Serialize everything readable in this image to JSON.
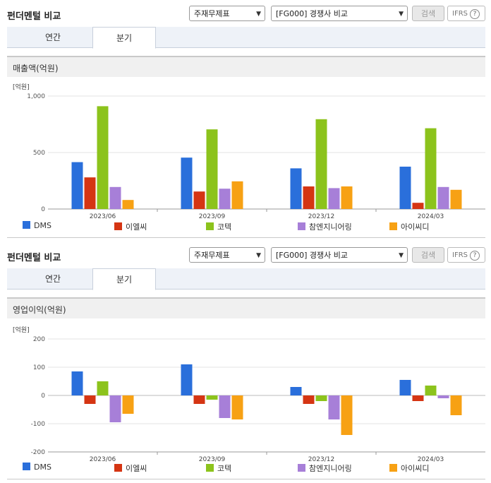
{
  "panels": [
    {
      "title": "펀더멘털 비교",
      "select1": "주재무제표",
      "select2": "[FG000] 경쟁사 비교",
      "search_button": "검색",
      "ifrs_label": "IFRS",
      "ifrs_help": "?",
      "tabs": [
        {
          "label": "연간"
        },
        {
          "label": "분기"
        }
      ],
      "active_tab": "분기",
      "chart_label": "매출액(억원)"
    },
    {
      "title": "펀더멘털 비교",
      "select1": "주재무제표",
      "select2": "[FG000] 경쟁사 비교",
      "search_button": "검색",
      "ifrs_label": "IFRS",
      "ifrs_help": "?",
      "tabs": [
        {
          "label": "연간"
        },
        {
          "label": "분기"
        }
      ],
      "active_tab": "분기",
      "chart_label": "영업이익(억원)"
    }
  ],
  "chart_data": [
    {
      "type": "bar",
      "unit_label": "[억원]",
      "categories": [
        "2023/06",
        "2023/09",
        "2023/12",
        "2024/03"
      ],
      "ylim": [
        0,
        1000
      ],
      "yticks": [
        0,
        500,
        1000
      ],
      "ytick_labels": [
        "0",
        "500",
        "1,000"
      ],
      "grid": true,
      "legend_position": "bottom",
      "series": [
        {
          "name": "DMS",
          "color": "#2a6fdb",
          "values": [
            415,
            455,
            360,
            375
          ]
        },
        {
          "name": "이엘씨",
          "color": "#d53513",
          "values": [
            280,
            155,
            200,
            55
          ]
        },
        {
          "name": "코텍",
          "color": "#8cc31c",
          "values": [
            910,
            705,
            795,
            715
          ]
        },
        {
          "name": "참엔지니어링",
          "color": "#a77fd8",
          "values": [
            195,
            180,
            185,
            195
          ]
        },
        {
          "name": "아이씨디",
          "color": "#f7a114",
          "values": [
            80,
            245,
            200,
            170
          ]
        }
      ]
    },
    {
      "type": "bar",
      "unit_label": "[억원]",
      "categories": [
        "2023/06",
        "2023/09",
        "2023/12",
        "2024/03"
      ],
      "ylim": [
        -200,
        200
      ],
      "yticks": [
        -200,
        -100,
        0,
        100,
        200
      ],
      "ytick_labels": [
        "-200",
        "-100",
        "0",
        "100",
        "200"
      ],
      "grid": true,
      "legend_position": "bottom",
      "series": [
        {
          "name": "DMS",
          "color": "#2a6fdb",
          "values": [
            85,
            110,
            30,
            55
          ]
        },
        {
          "name": "이엘씨",
          "color": "#d53513",
          "values": [
            -30,
            -30,
            -30,
            -20
          ]
        },
        {
          "name": "코텍",
          "color": "#8cc31c",
          "values": [
            50,
            -15,
            -20,
            35
          ]
        },
        {
          "name": "참엔지니어링",
          "color": "#a77fd8",
          "values": [
            -95,
            -80,
            -85,
            -10
          ]
        },
        {
          "name": "아이씨디",
          "color": "#f7a114",
          "values": [
            -65,
            -85,
            -140,
            -70
          ]
        }
      ]
    }
  ]
}
